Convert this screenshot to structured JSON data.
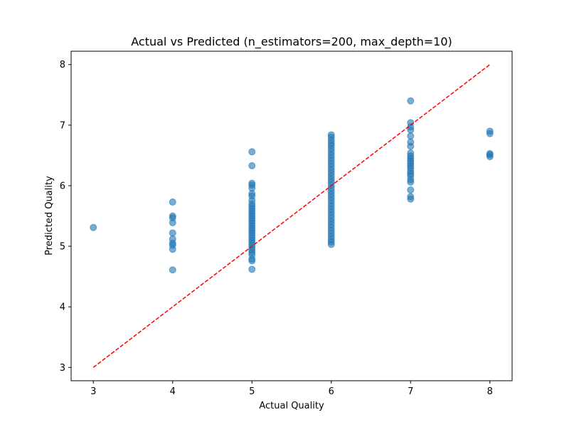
{
  "chart_data": {
    "type": "scatter",
    "title": "Actual vs Predicted (n_estimators=200, max_depth=10)",
    "xlabel": "Actual Quality",
    "ylabel": "Predicted Quality",
    "xlim": [
      2.72,
      8.28
    ],
    "ylim": [
      2.78,
      8.22
    ],
    "xticks": [
      3,
      4,
      5,
      6,
      7,
      8
    ],
    "yticks": [
      3,
      4,
      5,
      6,
      7,
      8
    ],
    "grid": false,
    "legend": "none",
    "point_color": "#1f77b4",
    "point_alpha": 0.6,
    "reference_line": {
      "x": [
        3,
        8
      ],
      "y": [
        3,
        8
      ],
      "color": "#ff0000",
      "style": "dashed"
    },
    "series": [
      {
        "points": [
          [
            3,
            5.31
          ],
          [
            4,
            5.73
          ],
          [
            4,
            5.5
          ],
          [
            4,
            5.47
          ],
          [
            4,
            5.39
          ],
          [
            4,
            5.22
          ],
          [
            4,
            5.12
          ],
          [
            4,
            5.05
          ],
          [
            4,
            5.02
          ],
          [
            4,
            4.95
          ],
          [
            4,
            4.61
          ],
          [
            5,
            6.56
          ],
          [
            5,
            6.33
          ],
          [
            5,
            6.04
          ],
          [
            5,
            6.01
          ],
          [
            5,
            5.96
          ],
          [
            5,
            5.87
          ],
          [
            5,
            5.83
          ],
          [
            5,
            5.76
          ],
          [
            5,
            5.7
          ],
          [
            5,
            5.66
          ],
          [
            5,
            5.62
          ],
          [
            5,
            5.58
          ],
          [
            5,
            5.54
          ],
          [
            5,
            5.5
          ],
          [
            5,
            5.46
          ],
          [
            5,
            5.42
          ],
          [
            5,
            5.38
          ],
          [
            5,
            5.34
          ],
          [
            5,
            5.3
          ],
          [
            5,
            5.26
          ],
          [
            5,
            5.22
          ],
          [
            5,
            5.18
          ],
          [
            5,
            5.14
          ],
          [
            5,
            5.1
          ],
          [
            5,
            5.06
          ],
          [
            5,
            5.02
          ],
          [
            5,
            4.98
          ],
          [
            5,
            4.94
          ],
          [
            5,
            4.9
          ],
          [
            5,
            4.86
          ],
          [
            5,
            4.79
          ],
          [
            5,
            4.76
          ],
          [
            5,
            4.62
          ],
          [
            6,
            6.84
          ],
          [
            6,
            6.8
          ],
          [
            6,
            6.75
          ],
          [
            6,
            6.7
          ],
          [
            6,
            6.66
          ],
          [
            6,
            6.61
          ],
          [
            6,
            6.56
          ],
          [
            6,
            6.51
          ],
          [
            6,
            6.46
          ],
          [
            6,
            6.41
          ],
          [
            6,
            6.36
          ],
          [
            6,
            6.31
          ],
          [
            6,
            6.26
          ],
          [
            6,
            6.21
          ],
          [
            6,
            6.16
          ],
          [
            6,
            6.11
          ],
          [
            6,
            6.06
          ],
          [
            6,
            6.01
          ],
          [
            6,
            5.96
          ],
          [
            6,
            5.91
          ],
          [
            6,
            5.86
          ],
          [
            6,
            5.81
          ],
          [
            6,
            5.76
          ],
          [
            6,
            5.71
          ],
          [
            6,
            5.66
          ],
          [
            6,
            5.61
          ],
          [
            6,
            5.56
          ],
          [
            6,
            5.51
          ],
          [
            6,
            5.46
          ],
          [
            6,
            5.41
          ],
          [
            6,
            5.36
          ],
          [
            6,
            5.31
          ],
          [
            6,
            5.26
          ],
          [
            6,
            5.21
          ],
          [
            6,
            5.16
          ],
          [
            6,
            5.11
          ],
          [
            6,
            5.07
          ],
          [
            6,
            5.03
          ],
          [
            7,
            7.4
          ],
          [
            7,
            7.04
          ],
          [
            7,
            6.97
          ],
          [
            7,
            6.92
          ],
          [
            7,
            6.82
          ],
          [
            7,
            6.72
          ],
          [
            7,
            6.65
          ],
          [
            7,
            6.54
          ],
          [
            7,
            6.49
          ],
          [
            7,
            6.45
          ],
          [
            7,
            6.41
          ],
          [
            7,
            6.37
          ],
          [
            7,
            6.33
          ],
          [
            7,
            6.29
          ],
          [
            7,
            6.24
          ],
          [
            7,
            6.2
          ],
          [
            7,
            6.16
          ],
          [
            7,
            6.1
          ],
          [
            7,
            6.06
          ],
          [
            7,
            5.93
          ],
          [
            7,
            5.82
          ],
          [
            7,
            5.78
          ],
          [
            8,
            6.9
          ],
          [
            8,
            6.86
          ],
          [
            8,
            6.53
          ],
          [
            8,
            6.51
          ],
          [
            8,
            6.48
          ]
        ]
      }
    ]
  }
}
